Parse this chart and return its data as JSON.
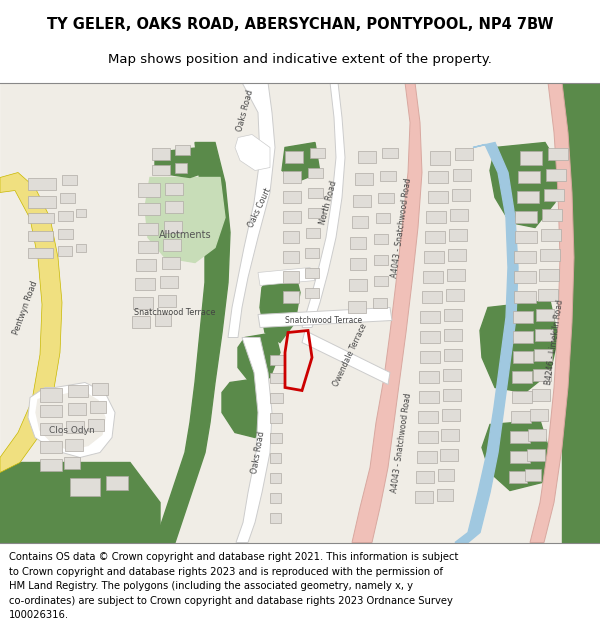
{
  "title_line1": "TY GELER, OAKS ROAD, ABERSYCHAN, PONTYPOOL, NP4 7BW",
  "title_line2": "Map shows position and indicative extent of the property.",
  "footer_text": "Contains OS data © Crown copyright and database right 2021. This information is subject to Crown copyright and database rights 2023 and is reproduced with the permission of HM Land Registry. The polygons (including the associated geometry, namely x, y co-ordinates) are subject to Crown copyright and database rights 2023 Ordnance Survey 100026316.",
  "map_bg": "#f0ede6",
  "road_color": "#ffffff",
  "road_outline": "#cccccc",
  "green_dark": "#5a8a4a",
  "green_light": "#c8ddb8",
  "a_road_color": "#f0c0b8",
  "river_color": "#a0c8e0",
  "yellow_road": "#f0e080",
  "yellow_outline": "#c8b800",
  "plot_color": "#cc0000",
  "building_color": "#e0ddd8",
  "building_outline": "#b0aba5",
  "title_fontsize": 10.5,
  "subtitle_fontsize": 9.5,
  "footer_fontsize": 7.2
}
